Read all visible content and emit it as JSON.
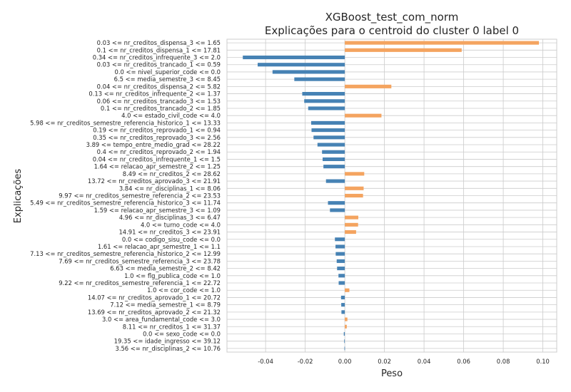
{
  "chart_data": {
    "type": "bar",
    "orientation": "horizontal",
    "title": "XGBoost_test_com_norm",
    "subtitle": "Explicações para o centroid do cluster 0 label 0",
    "xlabel": "Peso",
    "ylabel": "Explicações",
    "xlim": [
      -0.0595,
      0.107
    ],
    "xticks": [
      -0.04,
      -0.02,
      0.0,
      0.02,
      0.04,
      0.06,
      0.08,
      0.1
    ],
    "xtick_labels": [
      "-0.04",
      "-0.02",
      "0.00",
      "0.02",
      "0.04",
      "0.06",
      "0.08",
      "0.10"
    ],
    "grid": true,
    "colors": {
      "positive": "#f4a460",
      "negative": "#4682b4"
    },
    "categories": [
      "0.03 <= nr_creditos_dispensa_3 <= 1.65",
      "0.1 <= nr_creditos_dispensa_1 <= 17.81",
      "0.34 <= nr_creditos_infrequente_3 <= 2.0",
      "0.03 <= nr_creditos_trancado_1 <= 0.59",
      "0.0 <= nivel_superior_code <= 0.0",
      "6.5 <= media_semestre_3 <= 8.45",
      "0.04 <= nr_creditos_dispensa_2 <= 5.82",
      "0.13 <= nr_creditos_infrequente_2 <= 1.37",
      "0.06 <= nr_creditos_trancado_3 <= 1.53",
      "0.1 <= nr_creditos_trancado_2 <= 1.85",
      "4.0 <= estado_civil_code <= 4.0",
      "5.98 <= nr_creditos_semestre_referencia_historico_1 <= 13.33",
      "0.19 <= nr_creditos_reprovado_1 <= 0.94",
      "0.35 <= nr_creditos_reprovado_3 <= 2.56",
      "3.89 <= tempo_entre_medio_grad <= 28.22",
      "0.4 <= nr_creditos_reprovado_2 <= 1.94",
      "0.04 <= nr_creditos_infrequente_1 <= 1.5",
      "1.64 <= relacao_apr_semestre_2 <= 1.25",
      "8.49 <= nr_creditos_2 <= 28.62",
      "13.72 <= nr_creditos_aprovado_3 <= 21.91",
      "3.84 <= nr_disciplinas_1 <= 8.06",
      "9.97 <= nr_creditos_semestre_referencia_2 <= 23.53",
      "5.49 <= nr_creditos_semestre_referencia_historico_3 <= 11.74",
      "1.59 <= relacao_apr_semestre_3 <= 1.09",
      "4.96 <= nr_disciplinas_3 <= 6.47",
      "4.0 <= turno_code <= 4.0",
      "14.91 <= nr_creditos_3 <= 23.91",
      "0.0 <= codigo_sisu_code <= 0.0",
      "1.61 <= relacao_apr_semestre_1 <= 1.1",
      "7.13 <= nr_creditos_semestre_referencia_historico_2 <= 12.99",
      "7.69 <= nr_creditos_semestre_referencia_3 <= 23.78",
      "6.63 <= media_semestre_2 <= 8.42",
      "1.0 <= flg_publica_code <= 1.0",
      "9.22 <= nr_creditos_semestre_referencia_1 <= 22.72",
      "1.0 <= cor_code <= 1.0",
      "14.07 <= nr_creditos_aprovado_1 <= 20.72",
      "7.12 <= media_semestre_1 <= 8.79",
      "13.69 <= nr_creditos_aprovado_2 <= 21.32",
      "3.0 <= area_fundamental_code <= 3.0",
      "8.11 <= nr_creditos_1 <= 31.37",
      "0.0 <= sexo_code <= 0.0",
      "19.35 <= idade_ingresso <= 39.12",
      "3.56 <= nr_disciplinas_2 <= 10.76"
    ],
    "values": [
      0.098,
      0.059,
      -0.0515,
      -0.044,
      -0.0365,
      -0.0255,
      0.0235,
      -0.0215,
      -0.0205,
      -0.0185,
      0.0185,
      -0.017,
      -0.0168,
      -0.0158,
      -0.0138,
      -0.0115,
      -0.0112,
      -0.0108,
      0.0098,
      -0.0095,
      0.0095,
      0.0092,
      -0.0085,
      -0.0075,
      0.0068,
      0.0067,
      0.0057,
      -0.005,
      -0.0047,
      -0.0046,
      -0.0041,
      -0.0039,
      -0.0032,
      -0.0031,
      0.0023,
      -0.0019,
      -0.0018,
      -0.0017,
      0.0013,
      0.001,
      -0.0005,
      -0.0003,
      -0.0002
    ]
  }
}
